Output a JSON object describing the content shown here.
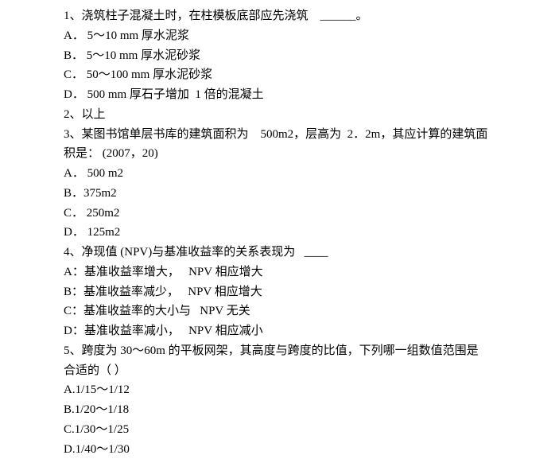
{
  "lines": [
    "1、浇筑柱子混凝土时，在柱模板底部应先浇筑    ______。",
    "A． 5～10 mm 厚水泥浆",
    "B． 5～10 mm 厚水泥砂浆",
    "C． 50～100 mm 厚水泥砂浆",
    "D． 500 mm 厚石子增加  1 倍的混凝土",
    "2、以上",
    "3、某图书馆单层书库的建筑面积为    500m2，层高为  2．2m，其应计算的建筑面",
    "积是： (2007，20)",
    "A． 500 m2",
    "B．375m2",
    "C． 250m2",
    "D． 125m2",
    "4、净现值 (NPV)与基准收益率的关系表现为   ____",
    "A：基准收益率增大，   NPV 相应增大",
    "B：基准收益率减少，   NPV 相应增大",
    "C：基准收益率的大小与   NPV 无关",
    "D：基准收益率减小，   NPV 相应减小",
    "5、跨度为 30～60m 的平板网架，其高度与跨度的比值，下列哪一组数值范围是",
    "合适的（ ）",
    "A.1/15～1/12",
    "B.1/20～1/18",
    "C.1/30～1/25",
    "D.1/40～1/30"
  ]
}
